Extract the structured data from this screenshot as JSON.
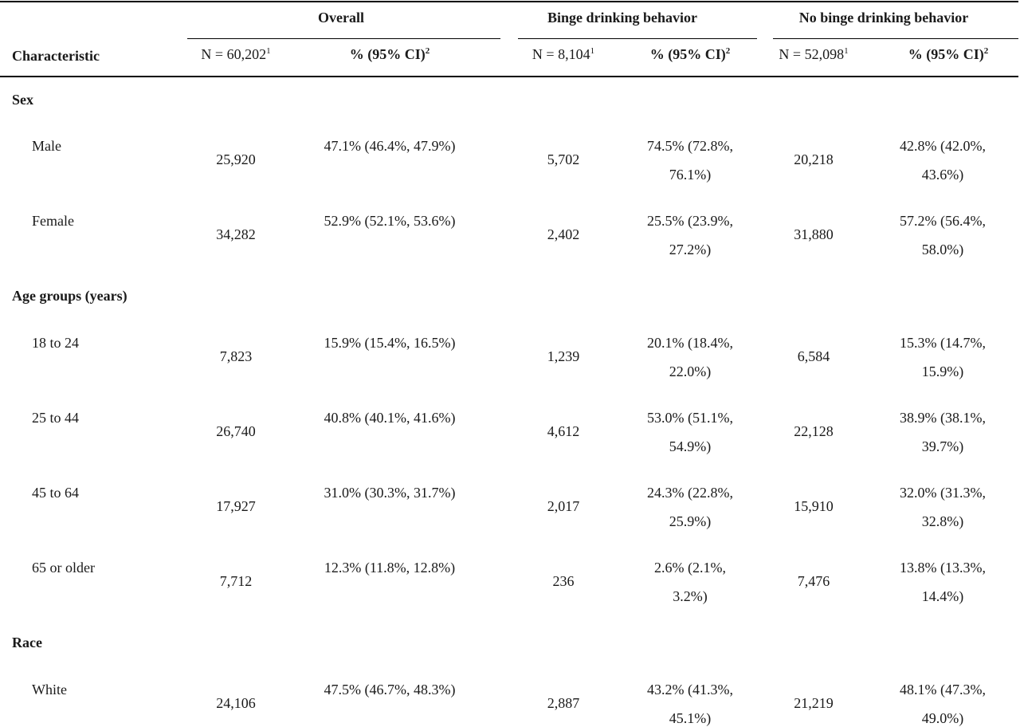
{
  "table": {
    "header": {
      "groups": [
        "Overall",
        "Binge drinking behavior",
        "No binge drinking behavior"
      ],
      "characteristic": "Characteristic",
      "n_overall": "N = 60,202",
      "n_binge": "N = 8,104",
      "n_nobinge": "N = 52,098",
      "pct_label": "% (95% CI)",
      "sup_n": "1",
      "sup_pct": "2"
    },
    "sections": [
      {
        "label": "Sex",
        "rows": [
          {
            "label": "Male",
            "n_overall": "25,920",
            "pct_overall": "47.1% (46.4%, 47.9%)",
            "n_binge": "5,702",
            "pct_binge": [
              "74.5% (72.8%,",
              "76.1%)"
            ],
            "n_nobinge": "20,218",
            "pct_nobinge": [
              "42.8% (42.0%,",
              "43.6%)"
            ]
          },
          {
            "label": "Female",
            "n_overall": "34,282",
            "pct_overall": "52.9% (52.1%, 53.6%)",
            "n_binge": "2,402",
            "pct_binge": [
              "25.5% (23.9%,",
              "27.2%)"
            ],
            "n_nobinge": "31,880",
            "pct_nobinge": [
              "57.2% (56.4%,",
              "58.0%)"
            ]
          }
        ]
      },
      {
        "label": "Age groups (years)",
        "rows": [
          {
            "label": "18 to 24",
            "n_overall": "7,823",
            "pct_overall": "15.9% (15.4%, 16.5%)",
            "n_binge": "1,239",
            "pct_binge": [
              "20.1% (18.4%,",
              "22.0%)"
            ],
            "n_nobinge": "6,584",
            "pct_nobinge": [
              "15.3% (14.7%,",
              "15.9%)"
            ]
          },
          {
            "label": "25 to 44",
            "n_overall": "26,740",
            "pct_overall": "40.8% (40.1%, 41.6%)",
            "n_binge": "4,612",
            "pct_binge": [
              "53.0% (51.1%,",
              "54.9%)"
            ],
            "n_nobinge": "22,128",
            "pct_nobinge": [
              "38.9% (38.1%,",
              "39.7%)"
            ]
          },
          {
            "label": "45 to 64",
            "n_overall": "17,927",
            "pct_overall": "31.0% (30.3%, 31.7%)",
            "n_binge": "2,017",
            "pct_binge": [
              "24.3% (22.8%,",
              "25.9%)"
            ],
            "n_nobinge": "15,910",
            "pct_nobinge": [
              "32.0% (31.3%,",
              "32.8%)"
            ]
          },
          {
            "label": "65 or older",
            "n_overall": "7,712",
            "pct_overall": "12.3% (11.8%, 12.8%)",
            "n_binge": "236",
            "pct_binge": [
              "2.6% (2.1%,",
              "3.2%)"
            ],
            "n_nobinge": "7,476",
            "pct_nobinge": [
              "13.8% (13.3%,",
              "14.4%)"
            ]
          }
        ]
      },
      {
        "label": "Race",
        "rows": [
          {
            "label": "White",
            "n_overall": "24,106",
            "pct_overall": "47.5% (46.7%, 48.3%)",
            "n_binge": "2,887",
            "pct_binge": [
              "43.2% (41.3%,",
              "45.1%)"
            ],
            "n_nobinge": "21,219",
            "pct_nobinge": [
              "48.1% (47.3%,",
              "49.0%)"
            ]
          }
        ]
      }
    ]
  }
}
